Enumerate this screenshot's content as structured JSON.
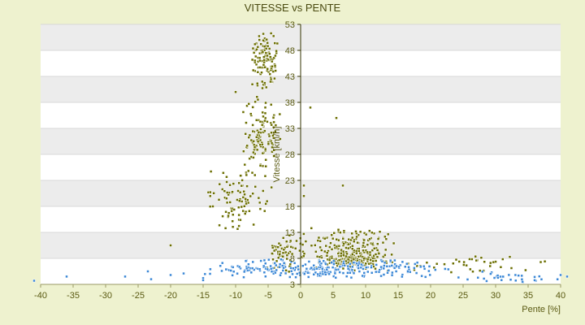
{
  "chart_data": {
    "type": "scatter",
    "title": "VITESSE vs PENTE",
    "xlabel": "Pente [%]",
    "ylabel": "Vitesse [km/h]",
    "xlim": [
      -40,
      40
    ],
    "ylim": [
      3,
      53
    ],
    "x_ticks": [
      -40,
      -35,
      -30,
      -25,
      -20,
      -15,
      -10,
      -5,
      0,
      5,
      10,
      15,
      20,
      25,
      30,
      35,
      40
    ],
    "y_ticks": [
      3,
      8,
      13,
      18,
      23,
      28,
      33,
      38,
      43,
      48,
      53
    ],
    "grid": true,
    "legend": "none",
    "series": [
      {
        "color": "#6b6e00",
        "clusters": [
          {
            "x_range": [
              -8,
              -3
            ],
            "y_range": [
              40,
              52
            ],
            "count": 110
          },
          {
            "x_range": [
              -9,
              -3
            ],
            "y_range": [
              23,
              40
            ],
            "count": 120
          },
          {
            "x_range": [
              -15,
              -4
            ],
            "y_range": [
              13,
              26
            ],
            "count": 90
          },
          {
            "x_range": [
              -6,
              1
            ],
            "y_range": [
              5,
              13
            ],
            "count": 70
          },
          {
            "x_range": [
              0,
              15
            ],
            "y_range": [
              5,
              14
            ],
            "count": 230
          },
          {
            "x_range": [
              4,
              12
            ],
            "y_range": [
              6,
              9
            ],
            "count": 120
          },
          {
            "x_range": [
              10,
              40
            ],
            "y_range": [
              5,
              9
            ],
            "count": 40
          }
        ],
        "points": [
          [
            1.5,
            37
          ],
          [
            5.5,
            35
          ],
          [
            6.5,
            22
          ],
          [
            0.5,
            22
          ],
          [
            -20,
            10.5
          ],
          [
            -13.5,
            18
          ],
          [
            -10,
            40
          ],
          [
            0.5,
            20
          ]
        ]
      },
      {
        "color": "#3a87d6",
        "clusters": [
          {
            "x_range": [
              -16,
              24
            ],
            "y_range": [
              4,
              8
            ],
            "count": 280
          },
          {
            "x_range": [
              24,
              40
            ],
            "y_range": [
              3,
              6
            ],
            "count": 30
          }
        ],
        "points": [
          [
            -41,
            3.7
          ],
          [
            -36,
            4.5
          ],
          [
            -27,
            4.5
          ],
          [
            -23.5,
            5.5
          ],
          [
            -23,
            4
          ],
          [
            -20,
            4.8
          ],
          [
            -18,
            5.1
          ],
          [
            -15,
            4.2
          ],
          [
            -15,
            3.8
          ],
          [
            36,
            3.8
          ],
          [
            40,
            4.8
          ],
          [
            41,
            4.5
          ]
        ]
      }
    ]
  }
}
